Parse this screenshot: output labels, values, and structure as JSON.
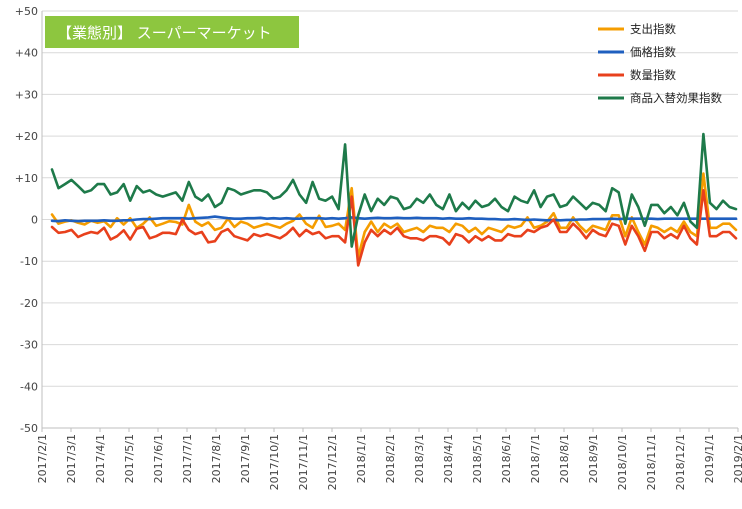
{
  "chart_data": {
    "type": "line",
    "title": "【業態別】 スーパーマーケット",
    "xlabel": "",
    "ylabel": "",
    "ylim": [
      -50,
      50
    ],
    "y_ticks": [
      "+50",
      "+40",
      "+30",
      "+20",
      "+10",
      "0",
      "-10",
      "-20",
      "-30",
      "-40",
      "-50"
    ],
    "y_tick_values": [
      50,
      40,
      30,
      20,
      10,
      0,
      -10,
      -20,
      -30,
      -40,
      -50
    ],
    "x_tick_labels": [
      "2017/2/1",
      "2017/3/1",
      "2017/4/1",
      "2017/5/1",
      "2017/6/1",
      "2017/7/1",
      "2017/8/1",
      "2017/9/1",
      "2017/10/1",
      "2017/11/1",
      "2017/12/1",
      "2018/1/1",
      "2018/2/1",
      "2018/3/1",
      "2018/4/1",
      "2018/5/1",
      "2018/6/1",
      "2018/7/1",
      "2018/8/1",
      "2018/9/1",
      "2018/10/1",
      "2018/11/1",
      "2018/12/1",
      "2019/1/1",
      "2019/2/1"
    ],
    "grid": "horizontal",
    "legend_position": "top-right",
    "series": [
      {
        "name": "支出指数",
        "color": "#f59d00",
        "values": [
          1.2,
          -1.0,
          -0.5,
          -0.2,
          -0.8,
          -1.2,
          -0.3,
          -0.8,
          -0.4,
          -1.8,
          0.3,
          -1.2,
          0.3,
          -2.0,
          -1.0,
          0.5,
          -1.5,
          -1.0,
          -0.4,
          -0.6,
          -1.2,
          3.5,
          -0.5,
          -1.5,
          -0.7,
          -2.5,
          -2.0,
          0.2,
          -1.8,
          -0.5,
          -1.0,
          -2.0,
          -1.5,
          -1.0,
          -1.5,
          -2.0,
          -1.0,
          -0.3,
          1.2,
          -1.0,
          -2.0,
          0.9,
          -1.8,
          -1.5,
          -1.0,
          -2.5,
          7.5,
          -9.0,
          -3.0,
          -0.5,
          -3.0,
          -1.0,
          -2.0,
          -1.0,
          -3.0,
          -2.5,
          -2.0,
          -3.0,
          -1.5,
          -2.0,
          -2.0,
          -3.0,
          -1.0,
          -1.5,
          -3.0,
          -2.0,
          -3.5,
          -2.0,
          -2.5,
          -3.0,
          -1.5,
          -2.0,
          -1.5,
          0.5,
          -2.0,
          -1.5,
          -0.5,
          1.5,
          -2.0,
          -2.0,
          0.5,
          -1.5,
          -3.0,
          -1.5,
          -2.0,
          -2.5,
          1.0,
          1.0,
          -4.0,
          0.5,
          -3.0,
          -6.0,
          -1.5,
          -2.0,
          -3.0,
          -2.0,
          -3.0,
          -0.5,
          -3.0,
          -4.0,
          11.0,
          -2.0,
          -2.0,
          -1.0,
          -1.0,
          -2.5
        ]
      },
      {
        "name": "価格指数",
        "color": "#1f5fbf",
        "values": [
          -0.3,
          -0.4,
          -0.2,
          -0.3,
          -0.4,
          -0.3,
          -0.3,
          -0.3,
          -0.2,
          -0.3,
          -0.3,
          -0.2,
          -0.2,
          0.0,
          0.1,
          0.1,
          0.2,
          0.3,
          0.3,
          0.3,
          0.3,
          0.2,
          0.3,
          0.4,
          0.5,
          0.7,
          0.5,
          0.3,
          0.2,
          0.2,
          0.3,
          0.3,
          0.4,
          0.2,
          0.3,
          0.2,
          0.3,
          0.2,
          0.2,
          0.3,
          0.3,
          0.3,
          0.2,
          0.3,
          0.2,
          0.3,
          0.5,
          0.3,
          0.2,
          0.3,
          0.4,
          0.3,
          0.3,
          0.4,
          0.3,
          0.3,
          0.4,
          0.3,
          0.3,
          0.3,
          0.2,
          0.3,
          0.2,
          0.2,
          0.3,
          0.2,
          0.2,
          0.1,
          0.1,
          0.0,
          0.0,
          0.1,
          0.0,
          -0.1,
          0.0,
          -0.1,
          -0.2,
          -0.1,
          -0.2,
          -0.1,
          -0.1,
          0.0,
          0.0,
          0.1,
          0.1,
          0.1,
          0.2,
          0.1,
          0.2,
          0.2,
          0.2,
          0.2,
          0.2,
          0.1,
          0.2,
          0.2,
          0.2,
          0.2,
          0.2,
          0.2,
          0.2,
          0.2,
          0.2,
          0.2,
          0.2,
          0.2
        ]
      },
      {
        "name": "数量指数",
        "color": "#e8401c",
        "values": [
          -1.8,
          -3.2,
          -3.0,
          -2.5,
          -4.2,
          -3.5,
          -3.0,
          -3.3,
          -2.0,
          -4.8,
          -4.0,
          -2.6,
          -4.8,
          -2.2,
          -1.8,
          -4.5,
          -4.0,
          -3.2,
          -3.2,
          -3.5,
          0.0,
          -2.5,
          -3.5,
          -3.0,
          -5.5,
          -5.2,
          -3.0,
          -2.3,
          -4.0,
          -4.5,
          -5.0,
          -3.5,
          -4.0,
          -3.5,
          -4.0,
          -4.5,
          -3.5,
          -2.0,
          -4.0,
          -2.5,
          -3.5,
          -3.0,
          -4.5,
          -4.0,
          -4.0,
          -5.5,
          5.5,
          -11.0,
          -5.5,
          -2.5,
          -4.0,
          -2.5,
          -3.5,
          -2.0,
          -4.0,
          -4.5,
          -4.5,
          -5.0,
          -4.0,
          -4.0,
          -4.5,
          -6.0,
          -3.5,
          -4.0,
          -5.5,
          -4.0,
          -5.0,
          -4.0,
          -5.0,
          -5.0,
          -3.5,
          -4.0,
          -4.0,
          -2.5,
          -3.0,
          -2.0,
          -1.5,
          0.0,
          -3.0,
          -3.0,
          -1.0,
          -2.5,
          -4.5,
          -2.5,
          -3.5,
          -4.0,
          -1.0,
          -1.5,
          -6.0,
          -1.5,
          -4.0,
          -7.5,
          -3.0,
          -3.0,
          -4.5,
          -3.5,
          -4.5,
          -1.5,
          -4.5,
          -6.0,
          7.0,
          -4.0,
          -4.0,
          -3.0,
          -3.0,
          -4.5
        ]
      },
      {
        "name": "商品入替効果指数",
        "color": "#1e7a4a",
        "values": [
          12.0,
          7.5,
          8.5,
          9.5,
          8.0,
          6.5,
          7.0,
          8.5,
          8.5,
          6.0,
          6.5,
          8.5,
          4.5,
          8.0,
          6.5,
          7.0,
          6.0,
          5.5,
          6.0,
          6.5,
          4.5,
          9.0,
          5.5,
          4.5,
          6.0,
          3.0,
          4.0,
          7.5,
          7.0,
          6.0,
          6.5,
          7.0,
          7.0,
          6.5,
          5.0,
          5.5,
          7.0,
          9.5,
          6.0,
          4.0,
          9.0,
          5.0,
          4.5,
          5.5,
          2.5,
          18.0,
          -6.5,
          1.0,
          6.0,
          2.0,
          5.0,
          3.5,
          5.5,
          5.0,
          2.5,
          3.0,
          5.0,
          4.0,
          6.0,
          3.5,
          2.5,
          6.0,
          2.0,
          4.0,
          2.5,
          4.5,
          3.0,
          3.5,
          5.0,
          3.0,
          2.0,
          5.5,
          4.5,
          4.0,
          7.0,
          3.0,
          5.5,
          6.0,
          3.0,
          3.5,
          5.5,
          4.0,
          2.5,
          4.0,
          3.5,
          2.0,
          7.5,
          6.5,
          -1.0,
          6.0,
          3.0,
          -1.5,
          3.5,
          3.5,
          1.5,
          3.0,
          1.0,
          4.0,
          -0.5,
          -2.0,
          20.5,
          4.0,
          2.5,
          4.5,
          3.0,
          2.5
        ]
      }
    ]
  }
}
